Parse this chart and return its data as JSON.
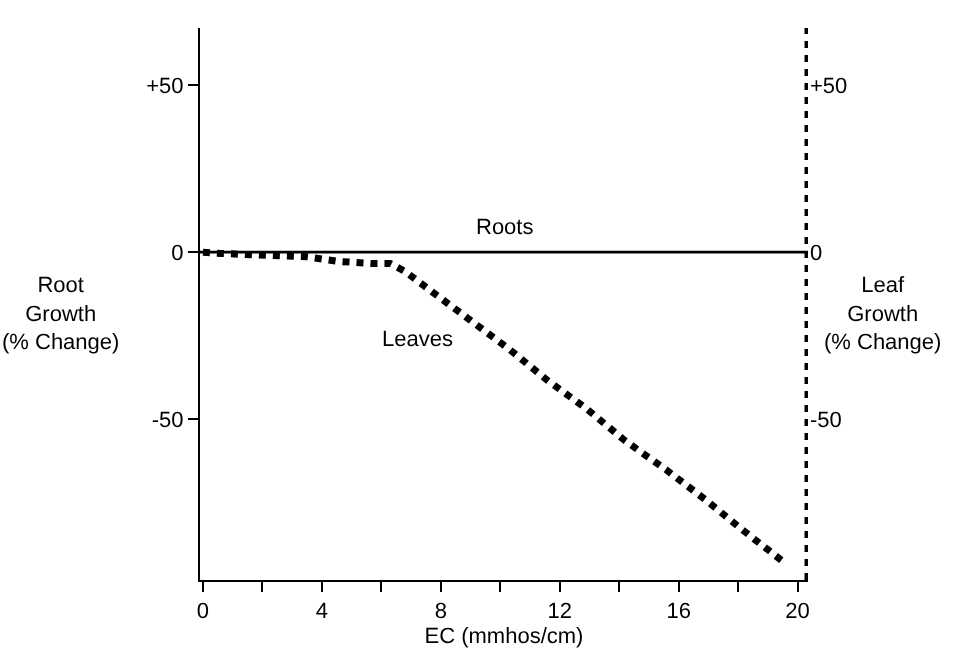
{
  "chart_data": {
    "type": "line",
    "xlabel": "EC (mmhos/cm)",
    "ylabel": "Root Growth (% Change)",
    "y2label": "Leaf Growth (% Change)",
    "xlim": [
      -0.1,
      20.35
    ],
    "xticks": [
      0,
      {
        "value": 2,
        "label": null
      },
      4,
      {
        "value": 6,
        "label": null
      },
      8,
      {
        "value": 10,
        "label": null
      },
      12,
      {
        "value": 14,
        "label": null
      },
      16,
      {
        "value": 18,
        "label": null
      },
      20
    ],
    "ylim": [
      -98,
      67
    ],
    "yticks": [
      {
        "value": -50,
        "label": "-50"
      },
      0,
      {
        "value": 50,
        "label": "+50"
      }
    ],
    "y2lim": [
      -98,
      67
    ],
    "y2ticks": [
      {
        "value": -50,
        "label": "-50"
      },
      0,
      {
        "value": 50,
        "label": "+50"
      }
    ],
    "series": [
      {
        "name": "Roots",
        "color": "#000000",
        "line_style": "solid",
        "x": [
          -0.1,
          20.35
        ],
        "values": [
          0,
          0
        ]
      },
      {
        "name": "Leaves",
        "color": "#000000",
        "line_style": "dotted",
        "axis": "y2",
        "x": [
          0,
          0.6,
          1.2,
          2.3,
          3.5,
          4.6,
          5.7,
          6.3,
          6.8,
          7.7,
          9.0,
          10.3,
          11.6,
          12.9,
          14.2,
          15.6,
          16.9,
          18.2,
          19.5
        ],
        "values": [
          0,
          -0.4,
          -0.6,
          -1,
          -1.4,
          -2.8,
          -3.4,
          -3.4,
          -5.8,
          -11.8,
          -20.4,
          -29,
          -38.4,
          -46.8,
          -56.4,
          -65.2,
          -74,
          -83.4,
          -92.4
        ]
      }
    ],
    "ref_lines": [
      {
        "axis": "x",
        "value": 20.35,
        "line_style": "dotted",
        "color": "#000000"
      }
    ],
    "grid": false,
    "legend": false
  }
}
